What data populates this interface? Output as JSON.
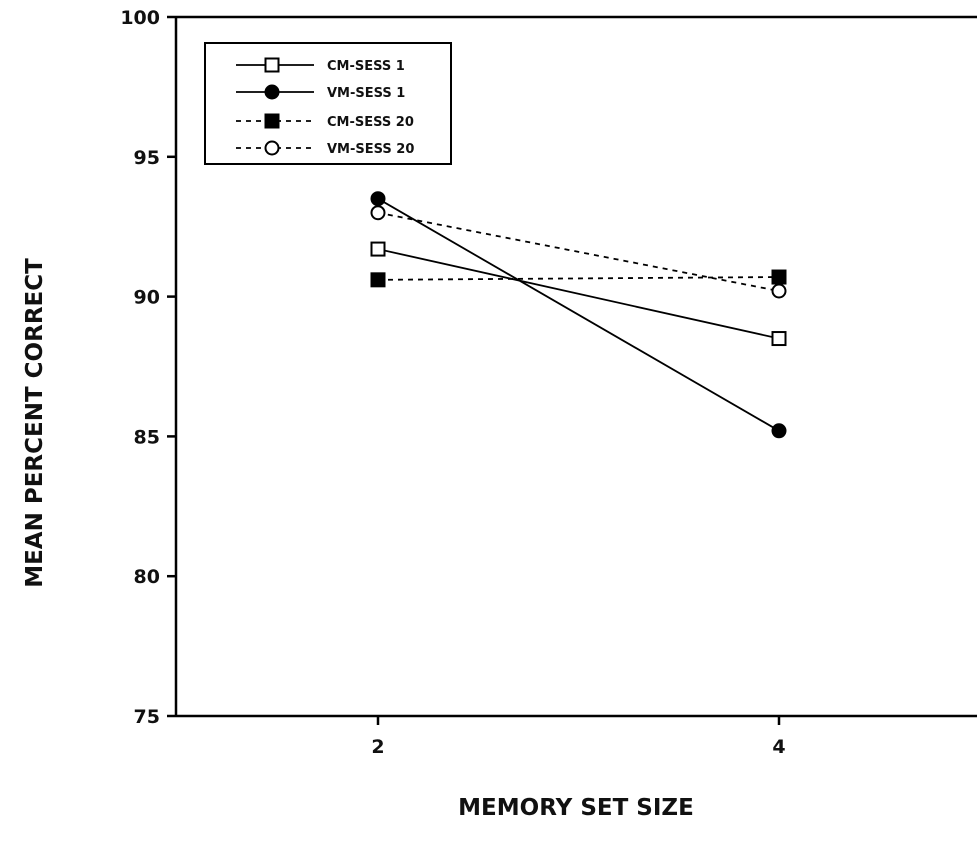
{
  "chart_data": {
    "type": "line",
    "title": "",
    "xlabel": "MEMORY SET SIZE",
    "ylabel": "MEAN PERCENT CORRECT",
    "x": [
      2,
      4
    ],
    "x_tick_labels": [
      "2",
      "4"
    ],
    "ylim": [
      75,
      100
    ],
    "y_ticks": [
      75,
      80,
      85,
      90,
      95,
      100
    ],
    "y_tick_labels": [
      "75",
      "80",
      "85",
      "90",
      "95",
      "100"
    ],
    "grid": false,
    "legend_position": "top-left",
    "series": [
      {
        "name": "CM-SESS 1",
        "values": [
          91.7,
          88.5
        ],
        "line_style": "solid",
        "marker": "open-square"
      },
      {
        "name": "VM-SESS 1",
        "values": [
          93.5,
          85.2
        ],
        "line_style": "solid",
        "marker": "filled-circle"
      },
      {
        "name": "CM-SESS 20",
        "values": [
          90.6,
          90.7
        ],
        "line_style": "dashed",
        "marker": "filled-square"
      },
      {
        "name": "VM-SESS 20",
        "values": [
          93.0,
          90.2
        ],
        "line_style": "dashed",
        "marker": "open-circle"
      }
    ]
  }
}
